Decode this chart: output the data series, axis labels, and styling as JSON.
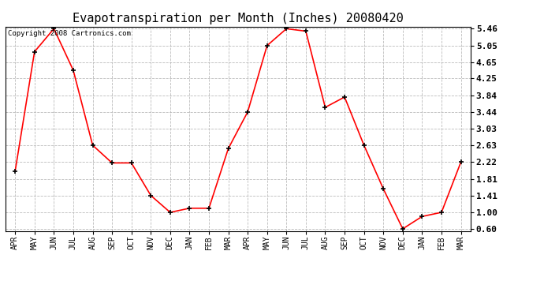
{
  "title": "Evapotranspiration per Month (Inches) 20080420",
  "copyright": "Copyright 2008 Cartronics.com",
  "months": [
    "APR",
    "MAY",
    "JUN",
    "JUL",
    "AUG",
    "SEP",
    "OCT",
    "NOV",
    "DEC",
    "JAN",
    "FEB",
    "MAR",
    "APR",
    "MAY",
    "JUN",
    "JUL",
    "AUG",
    "SEP",
    "OCT",
    "NOV",
    "DEC",
    "JAN",
    "FEB",
    "MAR"
  ],
  "values": [
    2.0,
    4.9,
    5.46,
    4.45,
    2.63,
    2.2,
    2.2,
    1.41,
    1.0,
    1.1,
    1.1,
    2.55,
    3.44,
    5.05,
    5.46,
    5.4,
    3.55,
    3.8,
    2.63,
    1.57,
    0.6,
    0.9,
    1.0,
    2.22
  ],
  "yticks": [
    0.6,
    1.0,
    1.41,
    1.81,
    2.22,
    2.63,
    3.03,
    3.44,
    3.84,
    4.25,
    4.65,
    5.05,
    5.46
  ],
  "ymin": 0.6,
  "ymax": 5.46,
  "line_color": "red",
  "marker": "+",
  "marker_color": "black",
  "bg_color": "white",
  "grid_color": "#bbbbbb",
  "title_fontsize": 11,
  "copyright_fontsize": 6.5
}
